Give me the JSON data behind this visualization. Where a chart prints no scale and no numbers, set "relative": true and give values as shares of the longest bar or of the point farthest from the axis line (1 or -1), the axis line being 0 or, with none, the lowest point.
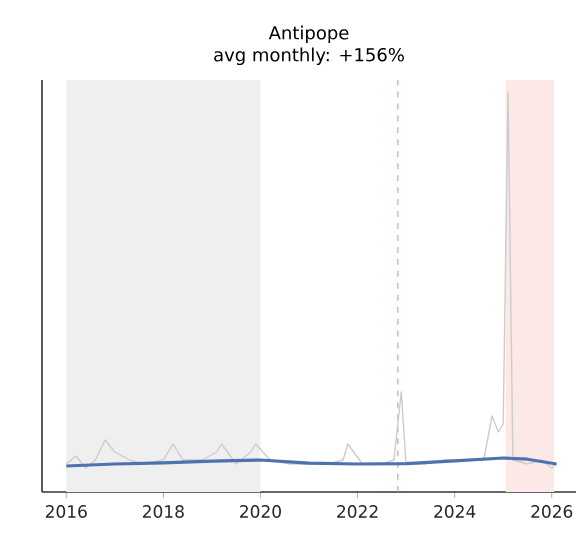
{
  "chart_data": {
    "type": "line",
    "title": "Antipope",
    "subtitle": "avg monthly: +156%",
    "relative": true,
    "xlim": [
      2015.5,
      2026.5
    ],
    "xticks": [
      2016,
      2018,
      2020,
      2022,
      2024,
      2026
    ],
    "series": [
      {
        "color": "#cccccc",
        "x": [
          2016.0,
          2016.2,
          2016.4,
          2016.6,
          2016.8,
          2017.0,
          2017.3,
          2017.6,
          2018.0,
          2018.2,
          2018.4,
          2018.8,
          2019.1,
          2019.2,
          2019.5,
          2019.8,
          2019.9,
          2020.2,
          2020.6,
          2021.0,
          2021.4,
          2021.7,
          2021.8,
          2022.1,
          2022.5,
          2022.75,
          2022.9,
          2023.0,
          2023.4,
          2023.8,
          2024.2,
          2024.6,
          2024.77,
          2024.9,
          2025.0,
          2025.1,
          2025.2,
          2025.5,
          2025.8,
          2026.0,
          2026.1
        ],
        "values": [
          0.07,
          0.09,
          0.06,
          0.08,
          0.13,
          0.1,
          0.08,
          0.07,
          0.08,
          0.12,
          0.08,
          0.08,
          0.1,
          0.12,
          0.07,
          0.1,
          0.12,
          0.08,
          0.07,
          0.07,
          0.07,
          0.08,
          0.12,
          0.07,
          0.07,
          0.08,
          0.25,
          0.07,
          0.07,
          0.08,
          0.08,
          0.08,
          0.19,
          0.15,
          0.17,
          1.0,
          0.08,
          0.07,
          0.08,
          0.06,
          0.07
        ]
      },
      {
        "color": "#4c72b0",
        "x": [
          2016.0,
          2017.0,
          2018.0,
          2019.0,
          2020.0,
          2021.0,
          2022.0,
          2023.0,
          2024.0,
          2025.0,
          2025.5,
          2026.1
        ],
        "values": [
          0.065,
          0.07,
          0.073,
          0.077,
          0.08,
          0.072,
          0.07,
          0.071,
          0.078,
          0.085,
          0.082,
          0.07
        ]
      }
    ],
    "bands": [
      {
        "axis": "x",
        "from": 2016,
        "to": 2020,
        "color": "#efefef"
      },
      {
        "axis": "x",
        "from": 2025.05,
        "to": 2026.05,
        "color": "#fde8e8"
      }
    ],
    "ref_lines": [
      {
        "axis": "x",
        "value": 2022.83,
        "color": "#d9a0a0",
        "line_style": "dashed"
      }
    ]
  }
}
